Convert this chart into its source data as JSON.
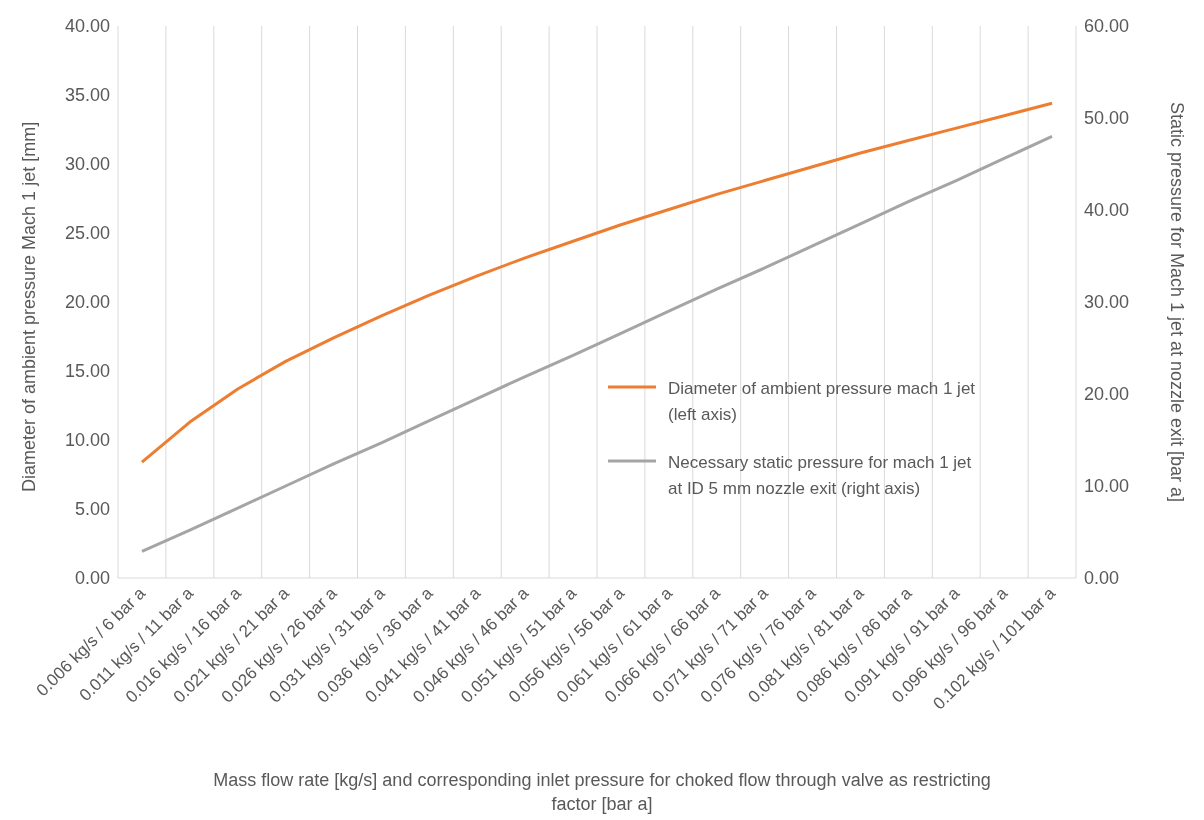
{
  "chart_data": {
    "type": "line",
    "xlabel": "Mass flow rate [kg/s] and corresponding inlet pressure for choked flow through valve as restricting factor [bar a]",
    "ylabel": "Diameter of ambient pressure Mach 1 jet [mm]",
    "y2label": "Static pressure for Mach 1 jet at nozzle exit [bar a]",
    "categories": [
      "0.006 kg/s / 6 bar a",
      "0.011 kg/s / 11 bar a",
      "0.016 kg/s / 16 bar a",
      "0.021 kg/s / 21 bar a",
      "0.026 kg/s / 26 bar a",
      "0.031 kg/s / 31 bar a",
      "0.036 kg/s / 36 bar a",
      "0.041 kg/s / 41 bar a",
      "0.046 kg/s / 46 bar a",
      "0.051 kg/s / 51 bar a",
      "0.056 kg/s / 56 bar a",
      "0.061 kg/s / 61 bar a",
      "0.066 kg/s / 66 bar a",
      "0.071 kg/s / 71 bar a",
      "0.076 kg/s / 76 bar a",
      "0.081 kg/s / 81 bar a",
      "0.086 kg/s / 86 bar a",
      "0.091 kg/s / 91 bar a",
      "0.096 kg/s / 96 bar a",
      "0.102 kg/s / 101 bar a"
    ],
    "series": [
      {
        "name": "Diameter of ambient pressure mach 1 jet (left axis)",
        "color": "#ed7d31",
        "values": [
          8.4,
          11.3,
          13.7,
          15.7,
          17.4,
          19.0,
          20.5,
          21.9,
          23.2,
          24.4,
          25.6,
          26.7,
          27.8,
          28.8,
          29.8,
          30.8,
          31.7,
          32.6,
          33.5,
          34.4
        ]
      },
      {
        "name": "Necessary static pressure for mach 1 jet at ID 5 mm nozzle exit (right axis)",
        "color": "#a5a5a5",
        "axis": "y2",
        "values": [
          2.9,
          5.2,
          7.6,
          10.0,
          12.4,
          14.7,
          17.1,
          19.5,
          21.9,
          24.2,
          26.6,
          29.0,
          31.4,
          33.7,
          36.1,
          38.5,
          40.9,
          43.2,
          45.6,
          48.0
        ]
      }
    ],
    "ylim": [
      0,
      40
    ],
    "yticks": [
      {
        "value": 0,
        "label": "0.00"
      },
      {
        "value": 5,
        "label": "5.00"
      },
      {
        "value": 10,
        "label": "10.00"
      },
      {
        "value": 15,
        "label": "15.00"
      },
      {
        "value": 20,
        "label": "20.00"
      },
      {
        "value": 25,
        "label": "25.00"
      },
      {
        "value": 30,
        "label": "30.00"
      },
      {
        "value": 35,
        "label": "35.00"
      },
      {
        "value": 40,
        "label": "40.00"
      }
    ],
    "y2lim": [
      0,
      60
    ],
    "y2ticks": [
      {
        "value": 0,
        "label": "0.00"
      },
      {
        "value": 10,
        "label": "10.00"
      },
      {
        "value": 20,
        "label": "20.00"
      },
      {
        "value": 30,
        "label": "30.00"
      },
      {
        "value": 40,
        "label": "40.00"
      },
      {
        "value": 50,
        "label": "50.00"
      },
      {
        "value": 60,
        "label": "60.00"
      }
    ],
    "grid": "x",
    "legend": "right",
    "marker": "none",
    "line_style": "solid"
  }
}
